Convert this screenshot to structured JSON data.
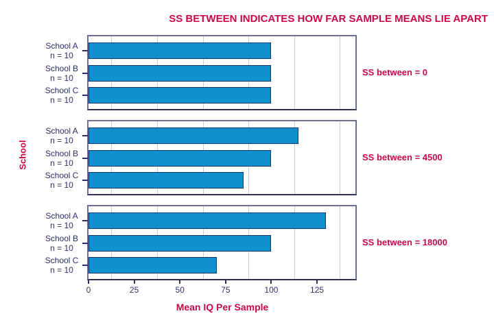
{
  "title": "SS BETWEEN INDICATES HOW FAR SAMPLE MEANS LIE APART",
  "colors": {
    "accent_text": "#C9084C",
    "axis_text": "#2D2D6B",
    "bar_fill": "#1190CE",
    "bar_border": "#14386B",
    "panel_border": "#6C6C9C",
    "axis_line": "#30305F",
    "gridline": "#C8CCDE"
  },
  "chart_data": {
    "type": "bar",
    "orientation": "horizontal",
    "title": "SS BETWEEN INDICATES HOW FAR SAMPLE MEANS LIE APART",
    "xlabel": "Mean IQ Per Sample",
    "ylabel": "School",
    "xlim": [
      0,
      146
    ],
    "xticks": [
      0,
      25,
      50,
      75,
      100,
      125
    ],
    "gridlines_x": [
      12.5,
      37.5,
      62.5,
      87.5,
      112.5,
      137.5
    ],
    "grid": "vertical gridlines offset midway between ticks",
    "legend": "none",
    "categories": [
      "School A",
      "School B",
      "School C"
    ],
    "category_sublabel": "n = 10",
    "panels": [
      {
        "annotation": "SS between = 0",
        "values": [
          100,
          100,
          100
        ]
      },
      {
        "annotation": "SS between = 4500",
        "values": [
          115,
          100,
          85
        ]
      },
      {
        "annotation": "SS between = 18000",
        "values": [
          130,
          100,
          70
        ]
      }
    ]
  }
}
